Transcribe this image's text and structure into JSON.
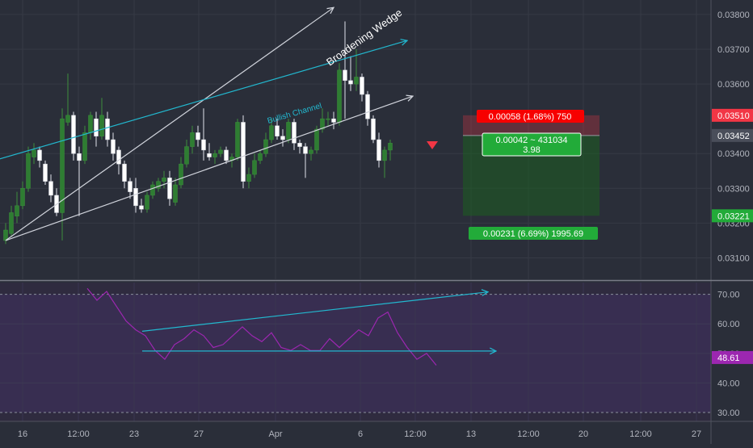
{
  "chart_data": {
    "type": "candlestick",
    "main": {
      "y_range": [
        0.0305,
        0.0383
      ],
      "y_ticks": [
        "0.03800",
        "0.03700",
        "0.03600",
        "0.03400",
        "0.03300",
        "0.03200",
        "0.03100"
      ],
      "price_badges": [
        {
          "value": "0.03510",
          "color": "#f23645"
        },
        {
          "value": "0.03452",
          "color": "#4a4e5a"
        },
        {
          "value": "0.03221",
          "color": "#22ab39"
        }
      ],
      "candles": [
        [
          0.0315,
          0.032,
          0.0314,
          0.0318
        ],
        [
          0.0317,
          0.0325,
          0.0316,
          0.0323
        ],
        [
          0.0322,
          0.0329,
          0.032,
          0.0325
        ],
        [
          0.0325,
          0.0332,
          0.0324,
          0.033
        ],
        [
          0.033,
          0.0342,
          0.0329,
          0.034
        ],
        [
          0.0339,
          0.0343,
          0.0337,
          0.0341
        ],
        [
          0.0341,
          0.0342,
          0.0336,
          0.0338
        ],
        [
          0.0337,
          0.0338,
          0.0331,
          0.0332
        ],
        [
          0.0332,
          0.0334,
          0.0326,
          0.0328
        ],
        [
          0.0328,
          0.033,
          0.0322,
          0.0323
        ],
        [
          0.0323,
          0.0353,
          0.0315,
          0.035
        ],
        [
          0.0349,
          0.0363,
          0.0348,
          0.0351
        ],
        [
          0.0351,
          0.0352,
          0.0338,
          0.034
        ],
        [
          0.034,
          0.0342,
          0.0322,
          0.0338
        ],
        [
          0.0338,
          0.0348,
          0.0337,
          0.0346
        ],
        [
          0.0346,
          0.0352,
          0.0344,
          0.0351
        ],
        [
          0.035,
          0.0352,
          0.0342,
          0.0345
        ],
        [
          0.0345,
          0.0356,
          0.0344,
          0.0351
        ],
        [
          0.035,
          0.0352,
          0.0342,
          0.0344
        ],
        [
          0.0344,
          0.0346,
          0.0338,
          0.034
        ],
        [
          0.0341,
          0.0342,
          0.0334,
          0.0337
        ],
        [
          0.0337,
          0.0338,
          0.033,
          0.0332
        ],
        [
          0.0332,
          0.0333,
          0.0327,
          0.0329
        ],
        [
          0.033,
          0.0333,
          0.0323,
          0.0325
        ],
        [
          0.0325,
          0.0327,
          0.0323,
          0.0324
        ],
        [
          0.0324,
          0.0329,
          0.0323,
          0.0328
        ],
        [
          0.0328,
          0.0332,
          0.0327,
          0.0331
        ],
        [
          0.033,
          0.0333,
          0.0329,
          0.0332
        ],
        [
          0.0332,
          0.0335,
          0.033,
          0.0333
        ],
        [
          0.0333,
          0.0335,
          0.0325,
          0.0327
        ],
        [
          0.0326,
          0.0333,
          0.0325,
          0.0331
        ],
        [
          0.0331,
          0.0339,
          0.033,
          0.0337
        ],
        [
          0.0337,
          0.0344,
          0.0336,
          0.0342
        ],
        [
          0.0342,
          0.0348,
          0.034,
          0.0346
        ],
        [
          0.0346,
          0.0348,
          0.0342,
          0.0344
        ],
        [
          0.0344,
          0.0353,
          0.0338,
          0.0341
        ],
        [
          0.034,
          0.0343,
          0.0338,
          0.0339
        ],
        [
          0.0339,
          0.0341,
          0.0337,
          0.034
        ],
        [
          0.034,
          0.0342,
          0.0339,
          0.0341
        ],
        [
          0.0341,
          0.0342,
          0.0337,
          0.0338
        ],
        [
          0.0338,
          0.034,
          0.0336,
          0.0339
        ],
        [
          0.0339,
          0.035,
          0.0338,
          0.0349
        ],
        [
          0.0349,
          0.0351,
          0.033,
          0.0332
        ],
        [
          0.0332,
          0.0336,
          0.033,
          0.0334
        ],
        [
          0.0334,
          0.034,
          0.0333,
          0.0338
        ],
        [
          0.0338,
          0.0341,
          0.0337,
          0.034
        ],
        [
          0.034,
          0.0346,
          0.0339,
          0.0344
        ],
        [
          0.0344,
          0.035,
          0.0343,
          0.0348
        ],
        [
          0.0348,
          0.035,
          0.0344,
          0.0345
        ],
        [
          0.0345,
          0.0347,
          0.0342,
          0.0344
        ],
        [
          0.0344,
          0.035,
          0.0343,
          0.0349
        ],
        [
          0.0349,
          0.035,
          0.0341,
          0.0343
        ],
        [
          0.0343,
          0.0344,
          0.034,
          0.0342
        ],
        [
          0.0342,
          0.0343,
          0.0333,
          0.034
        ],
        [
          0.034,
          0.0342,
          0.0338,
          0.0341
        ],
        [
          0.0341,
          0.0348,
          0.034,
          0.0347
        ],
        [
          0.0347,
          0.0353,
          0.0346,
          0.035
        ],
        [
          0.035,
          0.0352,
          0.0348,
          0.035
        ],
        [
          0.035,
          0.0352,
          0.0347,
          0.0349
        ],
        [
          0.0349,
          0.0366,
          0.0348,
          0.0364
        ],
        [
          0.0364,
          0.0378,
          0.035,
          0.0361
        ],
        [
          0.0361,
          0.0368,
          0.0358,
          0.036
        ],
        [
          0.036,
          0.037,
          0.0358,
          0.0362
        ],
        [
          0.0362,
          0.0363,
          0.0355,
          0.0357
        ],
        [
          0.0357,
          0.0358,
          0.0348,
          0.035
        ],
        [
          0.035,
          0.0351,
          0.0343,
          0.0344
        ],
        [
          0.0344,
          0.0346,
          0.0336,
          0.0338
        ],
        [
          0.0338,
          0.0342,
          0.0333,
          0.0341
        ],
        [
          0.0341,
          0.0344,
          0.0338,
          0.0343
        ]
      ],
      "trend_lines": [
        {
          "kind": "broadening-wedge-upper",
          "points": [
            [
              0,
              0.0315
            ],
            [
              58,
              0.0382
            ]
          ],
          "color": "#d1d4dc",
          "arrow": true
        },
        {
          "kind": "broadening-wedge-lower",
          "points": [
            [
              0,
              0.0315
            ],
            [
              72,
              0.03565
            ]
          ],
          "color": "#d1d4dc",
          "arrow": true
        },
        {
          "kind": "bullish-channel",
          "points": [
            [
              -2,
              0.0338
            ],
            [
              71,
              0.03725
            ]
          ],
          "color": "#22b8cf",
          "arrow": true
        }
      ],
      "labels": {
        "broadening_wedge": "Broadening Wedge",
        "bullish_channel": "Bullish Channel"
      },
      "position_tool": {
        "entry": 0.03452,
        "stop": 0.0351,
        "target": 0.03221,
        "stop_label": "0.00058 (1.68%) 750",
        "mid_label_line1": "0.00042 ~ 431034",
        "mid_label_line2": "3.98",
        "target_label": "0.00231 (6.69%) 1995.69"
      }
    },
    "rsi": {
      "y_range": [
        27,
        74
      ],
      "y_ticks": [
        "70.00",
        "60.00",
        "50.00",
        "40.00",
        "30.00"
      ],
      "current": "48.61",
      "values": [
        72,
        68,
        71,
        66,
        61,
        58,
        56,
        51,
        48,
        53,
        55,
        58,
        56,
        52,
        53,
        56,
        59,
        56,
        54,
        57,
        52,
        51,
        53,
        51,
        51,
        55,
        52,
        55,
        58,
        56,
        62,
        64,
        57,
        52,
        48,
        50,
        46
      ],
      "trend_lines": [
        {
          "points": [
            [
              10,
              57.5
            ],
            [
              66,
              70.8
            ]
          ],
          "color": "#22b8cf"
        },
        {
          "points": [
            [
              10,
              50.8
            ],
            [
              68,
              50.8
            ]
          ],
          "color": "#22b8cf"
        }
      ]
    },
    "x_ticks": [
      "16",
      "12:00",
      "23",
      "27",
      "Apr",
      "6",
      "12:00",
      "13",
      "12:00",
      "20",
      "12:00",
      "27"
    ]
  }
}
